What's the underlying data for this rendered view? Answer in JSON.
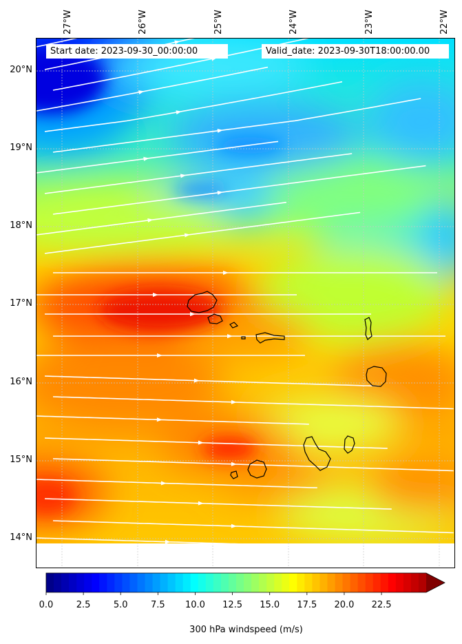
{
  "header": {
    "start_date": "Start date: 2023-09-30_00:00:00",
    "valid_date": "Valid_date: 2023-09-30T18:00:00.00"
  },
  "axes": {
    "lat_labels": [
      "20°N",
      "19°N",
      "18°N",
      "17°N",
      "16°N",
      "15°N",
      "14°N"
    ],
    "lon_labels": [
      "27°W",
      "26°W",
      "25°W",
      "24°W",
      "23°W",
      "22°W"
    ]
  },
  "colorbar": {
    "label": "300 hPa windspeed (m/s)",
    "ticks": [
      "0.0",
      "2.5",
      "5.0",
      "7.5",
      "10.0",
      "12.5",
      "15.0",
      "17.5",
      "20.0",
      "22.5"
    ],
    "colormap": "jet",
    "extend": "max"
  },
  "map": {
    "islands": [
      "Santo Antão",
      "São Vicente",
      "Santa Luzia",
      "São Nicolau",
      "Sal",
      "Boa Vista",
      "Maio",
      "Santiago",
      "Fogo",
      "Brava"
    ],
    "streamline_color": "#ffffff",
    "coastline_color": "#000000"
  }
}
